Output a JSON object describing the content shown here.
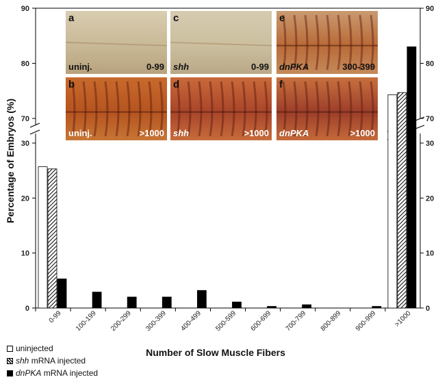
{
  "chart_data": {
    "type": "bar",
    "title": "",
    "ylabel": "Percentage of Embryos (%)",
    "xlabel": "Number of Slow Muscle Fibers",
    "categories": [
      "0-99",
      "100-199",
      "200-299",
      "300-399",
      "400-499",
      "500-599",
      "600-699",
      "700-799",
      "800-899",
      "900-999",
      ">1000"
    ],
    "ylim_lower": [
      0,
      30
    ],
    "ylim_upper": [
      70,
      90
    ],
    "axis_break": [
      30,
      70
    ],
    "yticks_lower": [
      "0",
      "10",
      "20",
      "30"
    ],
    "yticks_upper": [
      "70",
      "80",
      "90"
    ],
    "series": [
      {
        "name": "uninjected",
        "name_italic": "",
        "name_rest": "uninjected",
        "fill": "white",
        "values": [
          25.7,
          0,
          0,
          0,
          0,
          0,
          0,
          0,
          0,
          0,
          74.3
        ]
      },
      {
        "name": "shh mRNA injected",
        "name_italic": "shh",
        "name_rest": " mRNA injected",
        "fill": "hatch",
        "values": [
          25.3,
          0,
          0,
          0,
          0,
          0,
          0,
          0,
          0,
          0,
          74.7
        ]
      },
      {
        "name": "dnPKA mRNA injected",
        "name_italic": "dnPKA",
        "name_rest": " mRNA injected",
        "fill": "black",
        "values": [
          5.3,
          2.9,
          2.0,
          2.0,
          3.2,
          1.1,
          0.3,
          0.6,
          0,
          0.3,
          83.0
        ]
      }
    ]
  },
  "panels": [
    {
      "letter": "a",
      "left": "uninj.",
      "left_italic": false,
      "right": "0-99",
      "color_top": "#d8cdb0",
      "color_mid": "#c9b996",
      "color_bot": "#b8a27e",
      "stripes": false
    },
    {
      "letter": "c",
      "left": "shh",
      "left_italic": true,
      "right": "0-99",
      "color_top": "#d6cbb0",
      "color_mid": "#cbbf9f",
      "color_bot": "#b9a887",
      "stripes": false
    },
    {
      "letter": "e",
      "left": "dnPKA",
      "left_italic": true,
      "right": "300-399",
      "color_top": "#c99a70",
      "color_mid": "#b96a38",
      "color_bot": "#c58a5a",
      "stripes": true
    },
    {
      "letter": "b",
      "left": "uninj.",
      "left_italic": false,
      "right": ">1000",
      "color_top": "#c86a2c",
      "color_mid": "#b55420",
      "color_bot": "#c77535",
      "stripes": true
    },
    {
      "letter": "d",
      "left": "shh",
      "left_italic": true,
      "right": ">1000",
      "color_top": "#c96a3a",
      "color_mid": "#a8452a",
      "color_bot": "#c76c3c",
      "stripes": true
    },
    {
      "letter": "f",
      "left": "dnPKA",
      "left_italic": true,
      "right": ">1000",
      "color_top": "#c8703e",
      "color_mid": "#9c3e2a",
      "color_bot": "#c46a3a",
      "stripes": true
    }
  ]
}
